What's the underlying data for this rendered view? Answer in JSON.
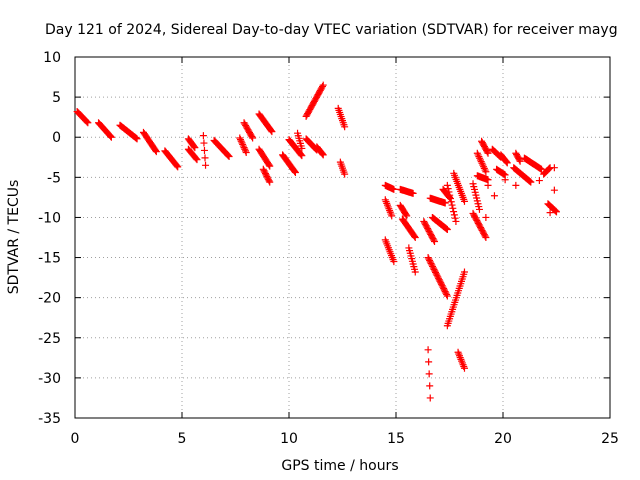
{
  "chart_data": {
    "type": "scatter",
    "title": "Day 121 of 2024, Sidereal Day-to-day VTEC variation (SDTVAR) for receiver mayg",
    "xlabel": "GPS time / hours",
    "ylabel": "SDTVAR / TECUs",
    "xlim": [
      0,
      25
    ],
    "ylim": [
      -35,
      10
    ],
    "x_ticks": [
      "0",
      "5",
      "10",
      "15",
      "20",
      "25"
    ],
    "y_ticks": [
      "10",
      "5",
      "0",
      "-5",
      "-10",
      "-15",
      "-20",
      "-25",
      "-30",
      "-35"
    ],
    "x_tick_values": [
      0,
      5,
      10,
      15,
      20,
      25
    ],
    "y_tick_values": [
      10,
      5,
      0,
      -5,
      -10,
      -15,
      -20,
      -25,
      -30,
      -35
    ],
    "grid": true,
    "marker": "+",
    "marker_color": "#ff0000",
    "segments": [
      {
        "x": [
          0.1,
          0.6
        ],
        "y": [
          3.2,
          1.8
        ]
      },
      {
        "x": [
          1.1,
          1.7
        ],
        "y": [
          1.8,
          0.0
        ]
      },
      {
        "x": [
          2.1,
          2.9
        ],
        "y": [
          1.5,
          -0.2
        ]
      },
      {
        "x": [
          3.2,
          3.8
        ],
        "y": [
          0.6,
          -1.8
        ]
      },
      {
        "x": [
          4.2,
          4.8
        ],
        "y": [
          -1.7,
          -3.7
        ]
      },
      {
        "x": [
          5.3,
          5.7
        ],
        "y": [
          -1.5,
          -2.8
        ]
      },
      {
        "x": [
          5.3,
          5.6
        ],
        "y": [
          -0.2,
          -1.3
        ]
      },
      {
        "x": [
          6.0,
          6.1
        ],
        "y": [
          0.2,
          -3.5
        ]
      },
      {
        "x": [
          6.5,
          7.2
        ],
        "y": [
          -0.4,
          -2.4
        ]
      },
      {
        "x": [
          7.7,
          8.0
        ],
        "y": [
          -0.1,
          -1.9
        ]
      },
      {
        "x": [
          7.9,
          8.3
        ],
        "y": [
          1.8,
          -0.1
        ]
      },
      {
        "x": [
          8.6,
          9.2
        ],
        "y": [
          2.9,
          0.7
        ]
      },
      {
        "x": [
          8.6,
          9.1
        ],
        "y": [
          -1.5,
          -3.6
        ]
      },
      {
        "x": [
          8.8,
          9.1
        ],
        "y": [
          -4.0,
          -5.6
        ]
      },
      {
        "x": [
          9.7,
          10.3
        ],
        "y": [
          -2.2,
          -4.4
        ]
      },
      {
        "x": [
          10.0,
          10.6
        ],
        "y": [
          -0.3,
          -2.3
        ]
      },
      {
        "x": [
          10.4,
          10.6
        ],
        "y": [
          0.5,
          -1.4
        ]
      },
      {
        "x": [
          10.8,
          11.6
        ],
        "y": [
          2.6,
          6.5
        ]
      },
      {
        "x": [
          10.8,
          11.3
        ],
        "y": [
          -0.2,
          -1.6
        ]
      },
      {
        "x": [
          11.3,
          11.6
        ],
        "y": [
          -1.2,
          -2.2
        ]
      },
      {
        "x": [
          12.3,
          12.6
        ],
        "y": [
          3.6,
          1.3
        ]
      },
      {
        "x": [
          12.4,
          12.6
        ],
        "y": [
          -3.1,
          -4.6
        ]
      },
      {
        "x": [
          14.5,
          14.9
        ],
        "y": [
          -6.0,
          -6.5
        ]
      },
      {
        "x": [
          14.5,
          14.8
        ],
        "y": [
          -7.8,
          -9.8
        ]
      },
      {
        "x": [
          14.5,
          14.9
        ],
        "y": [
          -12.8,
          -15.5
        ]
      },
      {
        "x": [
          15.2,
          15.8
        ],
        "y": [
          -6.5,
          -7.0
        ]
      },
      {
        "x": [
          15.2,
          15.5
        ],
        "y": [
          -8.5,
          -9.8
        ]
      },
      {
        "x": [
          15.3,
          15.9
        ],
        "y": [
          -10.2,
          -12.5
        ]
      },
      {
        "x": [
          15.6,
          15.9
        ],
        "y": [
          -13.8,
          -16.8
        ]
      },
      {
        "x": [
          16.3,
          16.8
        ],
        "y": [
          -10.5,
          -13.0
        ]
      },
      {
        "x": [
          16.5,
          16.6
        ],
        "y": [
          -26.5,
          -32.5
        ]
      },
      {
        "x": [
          16.5,
          17.4
        ],
        "y": [
          -15.0,
          -19.8
        ]
      },
      {
        "x": [
          16.6,
          17.3
        ],
        "y": [
          -7.6,
          -8.2
        ]
      },
      {
        "x": [
          16.7,
          17.4
        ],
        "y": [
          -10.0,
          -11.5
        ]
      },
      {
        "x": [
          17.2,
          17.5
        ],
        "y": [
          -6.5,
          -7.5
        ]
      },
      {
        "x": [
          17.4,
          18.2
        ],
        "y": [
          -23.5,
          -16.8
        ]
      },
      {
        "x": [
          17.4,
          17.8
        ],
        "y": [
          -6.0,
          -10.5
        ]
      },
      {
        "x": [
          17.7,
          18.2
        ],
        "y": [
          -4.5,
          -8.0
        ]
      },
      {
        "x": [
          17.9,
          18.2
        ],
        "y": [
          -26.8,
          -28.8
        ]
      },
      {
        "x": [
          18.6,
          18.9
        ],
        "y": [
          -5.8,
          -9.0
        ]
      },
      {
        "x": [
          18.6,
          19.2
        ],
        "y": [
          -9.5,
          -12.5
        ]
      },
      {
        "x": [
          18.8,
          19.3
        ],
        "y": [
          -4.8,
          -5.3
        ]
      },
      {
        "x": [
          19.0,
          19.3
        ],
        "y": [
          -0.5,
          -2.0
        ]
      },
      {
        "x": [
          18.8,
          19.2
        ],
        "y": [
          -2.0,
          -4.3
        ]
      },
      {
        "x": [
          19.5,
          19.9
        ],
        "y": [
          -1.5,
          -2.5
        ]
      },
      {
        "x": [
          19.7,
          20.1
        ],
        "y": [
          -4.0,
          -4.7
        ]
      },
      {
        "x": [
          19.9,
          20.2
        ],
        "y": [
          -2.2,
          -3.2
        ]
      },
      {
        "x": [
          20.5,
          21.3
        ],
        "y": [
          -3.8,
          -5.6
        ]
      },
      {
        "x": [
          20.6,
          20.8
        ],
        "y": [
          -2.0,
          -3.0
        ]
      },
      {
        "x": [
          21.0,
          21.8
        ],
        "y": [
          -2.6,
          -4.0
        ]
      },
      {
        "x": [
          21.9,
          22.2
        ],
        "y": [
          -4.6,
          -3.8
        ]
      },
      {
        "x": [
          22.1,
          22.5
        ],
        "y": [
          -8.3,
          -9.3
        ]
      }
    ],
    "points": [
      {
        "x": 19.3,
        "y": -6.0
      },
      {
        "x": 19.2,
        "y": -10.0
      },
      {
        "x": 20.1,
        "y": -5.3
      },
      {
        "x": 22.4,
        "y": -3.8
      },
      {
        "x": 22.4,
        "y": -6.6
      },
      {
        "x": 22.2,
        "y": -9.4
      },
      {
        "x": 19.6,
        "y": -7.3
      },
      {
        "x": 20.6,
        "y": -6.0
      },
      {
        "x": 21.7,
        "y": -5.4
      }
    ]
  }
}
